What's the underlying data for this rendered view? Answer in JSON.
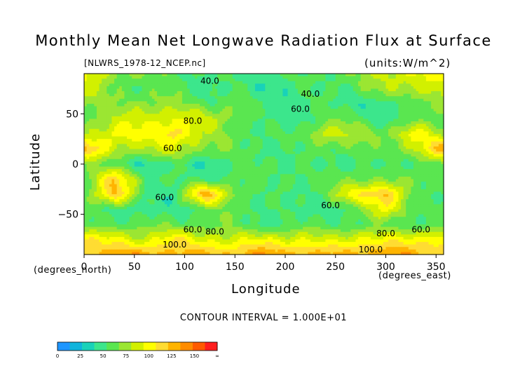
{
  "chart_data": {
    "type": "heatmap",
    "title": "Monthly Mean Net Longwave Radiation Flux at Surface",
    "subtitle": "[NLWRS_1978-12_NCEP.nc]",
    "units": "(units:W/m^2)",
    "xlabel": "Longitude",
    "ylabel": "Latitude",
    "x_units_label": "(degrees_east)",
    "y_units_label": "(degrees_north)",
    "contour_interval": "CONTOUR INTERVAL = 1.000E+01",
    "xlim": [
      0,
      357.5
    ],
    "ylim": [
      -90,
      90
    ],
    "x_ticks": [
      "0",
      "50",
      "100",
      "150",
      "200",
      "250",
      "300",
      "350"
    ],
    "y_ticks": [
      "50",
      "0",
      "-50"
    ],
    "colorbar": {
      "ticks": [
        "0",
        "25",
        "50",
        "75",
        "100",
        "125",
        "150",
        "∞"
      ],
      "levels": [
        0,
        12.5,
        25,
        37.5,
        50,
        62.5,
        75,
        87.5,
        100,
        112.5,
        125,
        137.5,
        150
      ],
      "colors": [
        "#1e96ff",
        "#0fb4dc",
        "#19d2b9",
        "#3ce68c",
        "#5ae650",
        "#9be632",
        "#d2f000",
        "#ffff00",
        "#ffdc32",
        "#ffb400",
        "#ff8c00",
        "#ff5a00",
        "#ff1e1e"
      ]
    },
    "contour_labels": [
      {
        "lon": 125,
        "lat": 80,
        "text": "40.0"
      },
      {
        "lon": 225,
        "lat": 67,
        "text": "40.0"
      },
      {
        "lon": 215,
        "lat": 52,
        "text": "60.0"
      },
      {
        "lon": 108,
        "lat": 40,
        "text": "80.0"
      },
      {
        "lon": 88,
        "lat": 13,
        "text": "60.0"
      },
      {
        "lon": 80,
        "lat": -36,
        "text": "60.0"
      },
      {
        "lon": 245,
        "lat": -44,
        "text": "60.0"
      },
      {
        "lon": 108,
        "lat": -68,
        "text": "60.0"
      },
      {
        "lon": 130,
        "lat": -70,
        "text": "80.0"
      },
      {
        "lon": 300,
        "lat": -72,
        "text": "80.0"
      },
      {
        "lon": 335,
        "lat": -68,
        "text": "60.0"
      },
      {
        "lon": 90,
        "lat": -83,
        "text": "100.0"
      },
      {
        "lon": 285,
        "lat": -88,
        "text": "100.0"
      }
    ],
    "field_grid": {
      "lon": [
        0,
        30,
        60,
        90,
        120,
        150,
        180,
        210,
        240,
        270,
        300,
        330,
        357.5
      ],
      "lat": [
        90,
        75,
        60,
        45,
        30,
        15,
        0,
        -15,
        -30,
        -45,
        -60,
        -75,
        -90
      ],
      "values": [
        [
          90,
          70,
          60,
          55,
          50,
          45,
          45,
          50,
          55,
          60,
          80,
          90,
          90
        ],
        [
          80,
          60,
          55,
          55,
          45,
          50,
          40,
          45,
          50,
          55,
          70,
          80,
          80
        ],
        [
          70,
          60,
          70,
          65,
          55,
          60,
          45,
          45,
          50,
          45,
          40,
          60,
          70
        ],
        [
          60,
          75,
          85,
          90,
          80,
          65,
          45,
          45,
          55,
          60,
          40,
          55,
          60
        ],
        [
          70,
          95,
          90,
          110,
          70,
          60,
          50,
          50,
          85,
          70,
          65,
          95,
          70
        ],
        [
          120,
          80,
          70,
          85,
          65,
          55,
          50,
          45,
          60,
          55,
          55,
          80,
          120
        ],
        [
          60,
          55,
          40,
          45,
          40,
          50,
          55,
          50,
          45,
          50,
          45,
          55,
          60
        ],
        [
          60,
          110,
          55,
          50,
          45,
          55,
          50,
          55,
          50,
          65,
          60,
          60,
          60
        ],
        [
          55,
          120,
          45,
          45,
          125,
          65,
          45,
          50,
          55,
          100,
          120,
          45,
          55
        ],
        [
          55,
          50,
          40,
          45,
          55,
          60,
          50,
          45,
          45,
          50,
          100,
          50,
          55
        ],
        [
          50,
          55,
          60,
          55,
          60,
          55,
          45,
          50,
          55,
          50,
          55,
          55,
          50
        ],
        [
          100,
          90,
          80,
          100,
          85,
          80,
          90,
          85,
          80,
          90,
          90,
          95,
          100
        ],
        [
          110,
          120,
          125,
          115,
          120,
          115,
          125,
          120,
          115,
          120,
          125,
          120,
          110
        ]
      ]
    },
    "grid": false,
    "legend": "bottom-left colorbar"
  }
}
